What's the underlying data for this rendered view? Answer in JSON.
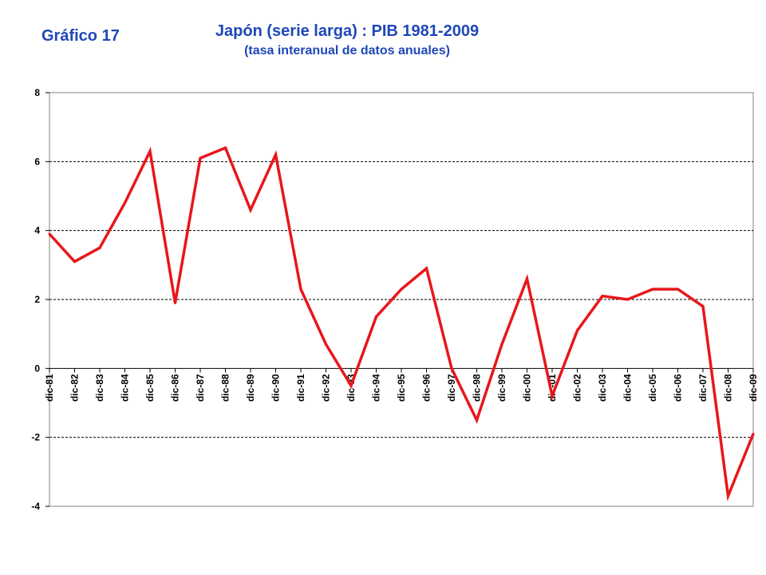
{
  "header": {
    "label": "Gráfico 17",
    "title": "Japón (serie larga) : PIB 1981-2009",
    "subtitle": "(tasa interanual de  datos anuales)"
  },
  "chart_data": {
    "type": "line",
    "title": "Japón (serie larga) : PIB 1981-2009",
    "subtitle": "(tasa interanual de  datos anuales)",
    "categories": [
      "dic-81",
      "dic-82",
      "dic-83",
      "dic-84",
      "dic-85",
      "dic-86",
      "dic-87",
      "dic-88",
      "dic-89",
      "dic-90",
      "dic-91",
      "dic-92",
      "dic-93",
      "dic-94",
      "dic-95",
      "dic-96",
      "dic-97",
      "dic-98",
      "dic-99",
      "dic-00",
      "dic-01",
      "dic-02",
      "dic-03",
      "dic-04",
      "dic-05",
      "dic-06",
      "dic-07",
      "dic-08",
      "dic-09"
    ],
    "series": [
      {
        "values": [
          3.9,
          3.1,
          3.5,
          4.8,
          6.3,
          1.9,
          6.1,
          6.4,
          4.6,
          6.2,
          2.3,
          0.7,
          -0.5,
          1.5,
          2.3,
          2.9,
          0.0,
          -1.5,
          0.7,
          2.6,
          -0.8,
          1.1,
          2.1,
          2.0,
          2.3,
          2.3,
          1.8,
          -3.7,
          -1.9
        ],
        "color": "#e8161b"
      }
    ],
    "ylim": [
      -4,
      8
    ],
    "yticks": [
      -4,
      -2,
      0,
      2,
      4,
      6,
      8
    ],
    "grid": "dashed horizontal lines at ±2, 4, 6",
    "xlabel": "",
    "ylabel": ""
  }
}
